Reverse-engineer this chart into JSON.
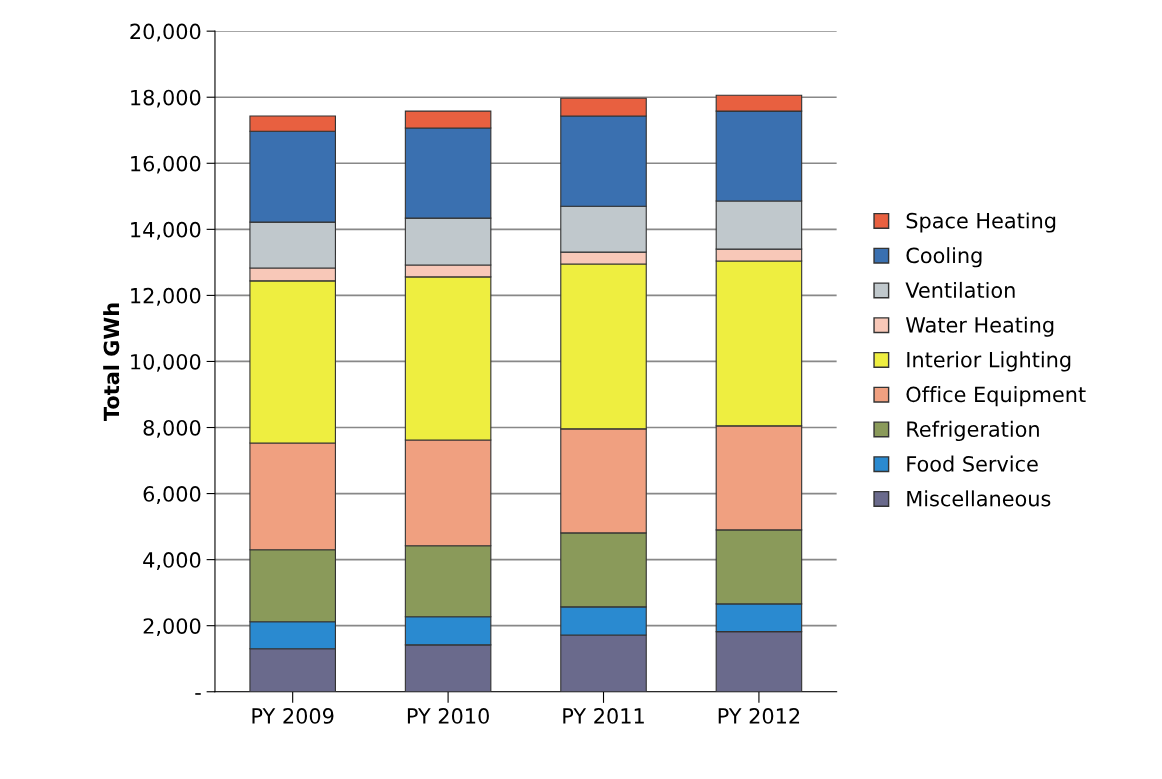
{
  "chart_data": {
    "type": "bar",
    "stacked": true,
    "ylabel": "Total GWh",
    "categories": [
      "PY 2009",
      "PY 2010",
      "PY 2011",
      "PY 2012"
    ],
    "ylim": [
      0,
      20000
    ],
    "yticks": [
      {
        "value": 0,
        "label": "-"
      },
      {
        "value": 2000,
        "label": "2,000"
      },
      {
        "value": 4000,
        "label": "4,000"
      },
      {
        "value": 6000,
        "label": "6,000"
      },
      {
        "value": 8000,
        "label": "8,000"
      },
      {
        "value": 10000,
        "label": "10,000"
      },
      {
        "value": 12000,
        "label": "12,000"
      },
      {
        "value": 14000,
        "label": "14,000"
      },
      {
        "value": 16000,
        "label": "16,000"
      },
      {
        "value": 18000,
        "label": "18,000"
      },
      {
        "value": 20000,
        "label": "20,000"
      }
    ],
    "grid": "y",
    "legend": "right",
    "series": [
      {
        "name": "Miscellaneous",
        "color": "#6a6a8c",
        "values": [
          1300,
          1420,
          1720,
          1820
        ]
      },
      {
        "name": "Food Service",
        "color": "#2a8ad0",
        "values": [
          820,
          850,
          850,
          840
        ]
      },
      {
        "name": "Refrigeration",
        "color": "#8a9a5a",
        "values": [
          2180,
          2150,
          2240,
          2240
        ]
      },
      {
        "name": "Office Equipment",
        "color": "#f0a080",
        "values": [
          3230,
          3200,
          3150,
          3150
        ]
      },
      {
        "name": "Interior Lighting",
        "color": "#eeee40",
        "values": [
          4910,
          4940,
          4990,
          4990
        ]
      },
      {
        "name": "Water Heating",
        "color": "#f8c8b8",
        "values": [
          390,
          360,
          360,
          360
        ]
      },
      {
        "name": "Ventilation",
        "color": "#c0c8cc",
        "values": [
          1390,
          1420,
          1390,
          1460
        ]
      },
      {
        "name": "Cooling",
        "color": "#3a70b0",
        "values": [
          2750,
          2730,
          2730,
          2720
        ]
      },
      {
        "name": "Space Heating",
        "color": "#e86040",
        "values": [
          460,
          510,
          540,
          480
        ]
      }
    ]
  }
}
